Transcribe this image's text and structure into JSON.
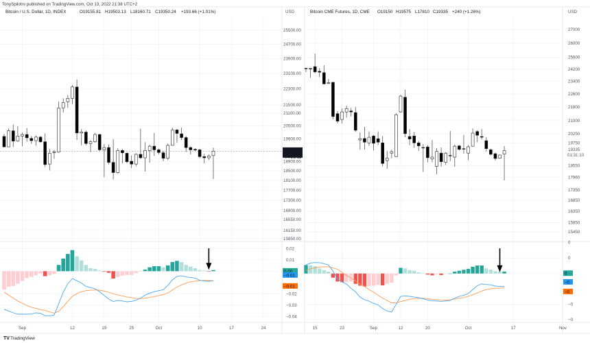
{
  "header": {
    "published": "TonySpilotro published on TradingView.com, Oct 13, 2022 21:38 UTC+2"
  },
  "footer": {
    "logo_text": "TradingView"
  },
  "colors": {
    "up_body": "#ffffff",
    "down_body": "#000000",
    "wick": "#555555",
    "hist_up_strong": "#26a69a",
    "hist_up_weak": "#b2dfdb",
    "hist_down_strong": "#ef5350",
    "hist_down_weak": "#ffcdd2",
    "macd_line": "#4aa8f0",
    "signal_line": "#ff9a52",
    "macd_badge": "#2196f3",
    "signal_badge": "#ff6d00",
    "hist_badge": "#26a69a",
    "grid": "#f0f3fa",
    "border": "#e0e3eb"
  },
  "chart_data": [
    {
      "type": "candlestick",
      "title": "Bitcoin / U.S. Dollar, 1D, INDEX",
      "legend": {
        "o": "O19155.81",
        "h": "H19503.13",
        "l": "L18160.71",
        "c": "C19350.24",
        "chg": "+193.66 (+1.01%)"
      },
      "currency": "USD",
      "y_scale": "log",
      "calendar": "daily",
      "y_ticks": [
        "25500.00",
        "24700.00",
        "23900.00",
        "23100.00",
        "22300.00",
        "21500.00",
        "21100.00",
        "20500.00",
        "19900.00",
        "18900.00",
        "18500.00",
        "18100.00",
        "17700.00",
        "17300.00",
        "16900.00",
        "16550.00",
        "16150.00",
        "15850.00"
      ],
      "last_price": "19350.24",
      "countdown": "04:21:11",
      "x_ticks": [
        [
          "Sep",
          "2022-09-01"
        ],
        [
          "12",
          "2022-09-12"
        ],
        [
          "19",
          "2022-09-19"
        ],
        [
          "25",
          "2022-09-25"
        ],
        [
          "Oct",
          "2022-10-01"
        ],
        [
          "10",
          "2022-10-10"
        ],
        [
          "17",
          "2022-10-17"
        ],
        [
          "24",
          "2022-10-24"
        ]
      ],
      "dates": [
        "2022-08-28",
        "2022-08-29",
        "2022-08-30",
        "2022-08-31",
        "2022-09-01",
        "2022-09-02",
        "2022-09-03",
        "2022-09-04",
        "2022-09-05",
        "2022-09-06",
        "2022-09-07",
        "2022-09-08",
        "2022-09-09",
        "2022-09-10",
        "2022-09-11",
        "2022-09-12",
        "2022-09-13",
        "2022-09-14",
        "2022-09-15",
        "2022-09-16",
        "2022-09-17",
        "2022-09-18",
        "2022-09-19",
        "2022-09-20",
        "2022-09-21",
        "2022-09-22",
        "2022-09-23",
        "2022-09-24",
        "2022-09-25",
        "2022-09-26",
        "2022-09-27",
        "2022-09-28",
        "2022-09-29",
        "2022-09-30",
        "2022-10-01",
        "2022-10-02",
        "2022-10-03",
        "2022-10-04",
        "2022-10-05",
        "2022-10-06",
        "2022-10-07",
        "2022-10-08",
        "2022-10-09",
        "2022-10-10",
        "2022-10-11",
        "2022-10-12",
        "2022-10-13"
      ],
      "candles": [
        [
          20010,
          20130,
          19540,
          19540
        ],
        [
          19540,
          20380,
          19540,
          20270
        ],
        [
          20270,
          20560,
          19540,
          19800
        ],
        [
          19800,
          20480,
          19770,
          20030
        ],
        [
          20030,
          20190,
          19570,
          20100
        ],
        [
          20100,
          20400,
          19770,
          19950
        ],
        [
          19920,
          20030,
          19670,
          19820
        ],
        [
          19820,
          20060,
          19590,
          19980
        ],
        [
          19980,
          20030,
          19720,
          19770
        ],
        [
          19770,
          20150,
          18670,
          18770
        ],
        [
          18790,
          19450,
          18520,
          19260
        ],
        [
          19280,
          19410,
          19010,
          19310
        ],
        [
          19310,
          21660,
          19280,
          21350
        ],
        [
          21360,
          21830,
          21130,
          21620
        ],
        [
          21660,
          22000,
          21360,
          21830
        ],
        [
          21830,
          22500,
          21550,
          22400
        ],
        [
          22400,
          22780,
          19850,
          20170
        ],
        [
          20170,
          20350,
          19610,
          20220
        ],
        [
          20210,
          20290,
          19610,
          19690
        ],
        [
          19690,
          19840,
          19310,
          19770
        ],
        [
          19770,
          20170,
          19720,
          20100
        ],
        [
          20100,
          20130,
          19360,
          19410
        ],
        [
          19410,
          19670,
          18240,
          19510
        ],
        [
          19510,
          19650,
          18770,
          18860
        ],
        [
          18860,
          19890,
          18140,
          18430
        ],
        [
          18430,
          19480,
          18380,
          19380
        ],
        [
          19380,
          19450,
          18820,
          19280
        ],
        [
          19260,
          19280,
          18820,
          18890
        ],
        [
          18910,
          19160,
          18620,
          18790
        ],
        [
          18790,
          19260,
          18690,
          19210
        ],
        [
          19210,
          20370,
          19010,
          19060
        ],
        [
          19060,
          19750,
          18470,
          19380
        ],
        [
          19380,
          19640,
          18850,
          19570
        ],
        [
          19570,
          20170,
          19140,
          19410
        ],
        [
          19410,
          19460,
          19210,
          19290
        ],
        [
          19280,
          19360,
          18910,
          19040
        ],
        [
          19040,
          19690,
          18960,
          19610
        ],
        [
          19610,
          20420,
          19590,
          20310
        ],
        [
          20310,
          20350,
          19720,
          20150
        ],
        [
          20130,
          20420,
          19850,
          19960
        ],
        [
          19960,
          20030,
          19310,
          19510
        ],
        [
          19510,
          19570,
          19210,
          19410
        ],
        [
          19430,
          19480,
          19360,
          19400
        ],
        [
          19410,
          19450,
          19040,
          19110
        ],
        [
          19110,
          19240,
          18820,
          19060
        ],
        [
          19060,
          19210,
          18960,
          19140
        ],
        [
          19155.81,
          19503.13,
          18160.71,
          19350.24
        ]
      ],
      "macd": {
        "y_ticks": [
          [
            "0.02",
            0.02
          ],
          [
            "0.01",
            0.01
          ],
          [
            "−0.02",
            -0.02
          ],
          [
            "−0.03",
            -0.03
          ],
          [
            "−0.04",
            -0.04
          ]
        ],
        "badges": {
          "histogram": "0.00",
          "macd": "−0.01",
          "signal": "−0.01"
        },
        "histogram": [
          -0.0162,
          -0.0137,
          -0.0131,
          -0.0111,
          -0.0085,
          -0.0061,
          -0.0051,
          -0.0036,
          -0.002,
          -0.0044,
          -0.0036,
          -0.0024,
          0.0055,
          0.0111,
          0.0152,
          0.0186,
          0.0131,
          0.0095,
          0.0055,
          0.0026,
          0.002,
          0.0006,
          -0.0004,
          -0.0014,
          -0.0065,
          -0.0051,
          -0.004,
          -0.0034,
          -0.0034,
          -0.0016,
          -0.0004,
          0.0014,
          0.0034,
          0.0044,
          0.0044,
          0.0034,
          0.0051,
          0.0081,
          0.0091,
          0.0081,
          0.0055,
          0.004,
          0.0026,
          0.001,
          0.0006,
          -0.0002,
          0.001
        ],
        "macd": [
          -0.0337,
          -0.0352,
          -0.0368,
          -0.038,
          -0.038,
          -0.038,
          -0.0378,
          -0.0368,
          -0.0372,
          -0.0394,
          -0.0394,
          -0.0388,
          -0.0287,
          -0.0186,
          -0.0111,
          -0.0065,
          -0.0085,
          -0.0105,
          -0.0135,
          -0.0145,
          -0.0156,
          -0.0182,
          -0.0214,
          -0.0246,
          -0.0267,
          -0.0259,
          -0.0263,
          -0.0271,
          -0.0267,
          -0.0255,
          -0.0238,
          -0.0212,
          -0.0194,
          -0.0182,
          -0.0172,
          -0.0164,
          -0.0125,
          -0.0077,
          -0.0046,
          -0.004,
          -0.0051,
          -0.0055,
          -0.0061,
          -0.0081,
          -0.0087,
          -0.0089,
          -0.0085
        ],
        "signal": [
          -0.0185,
          -0.0212,
          -0.0238,
          -0.0263,
          -0.0283,
          -0.0303,
          -0.0319,
          -0.0329,
          -0.0339,
          -0.0347,
          -0.036,
          -0.037,
          -0.0354,
          -0.0313,
          -0.0267,
          -0.0222,
          -0.0198,
          -0.0182,
          -0.0172,
          -0.0168,
          -0.0166,
          -0.0168,
          -0.0176,
          -0.0186,
          -0.0198,
          -0.021,
          -0.0218,
          -0.0228,
          -0.0234,
          -0.024,
          -0.0242,
          -0.0238,
          -0.0232,
          -0.0224,
          -0.0216,
          -0.0206,
          -0.0192,
          -0.0166,
          -0.0141,
          -0.0121,
          -0.0105,
          -0.0095,
          -0.0087,
          -0.0083,
          -0.0081,
          -0.0083,
          -0.0085
        ]
      },
      "annotation": {
        "type": "down-arrow",
        "date": "2022-10-12"
      }
    },
    {
      "type": "candlestick",
      "title": "Bitcoin CME Futures, 1D, CME",
      "legend": {
        "o": "O19150",
        "h": "H19575",
        "l": "L17810",
        "c": "C19335",
        "chg": "+240 (+1.26%)"
      },
      "currency": "USD",
      "y_scale": "log",
      "calendar": "weekdays",
      "y_ticks": [
        "27000",
        "26000",
        "25000",
        "24200",
        "23400",
        "22600",
        "21800",
        "21000",
        "20250",
        "19750",
        "18550",
        "17960",
        "17350",
        "16850",
        "16350",
        "15850",
        "15450"
      ],
      "last_price": "19335",
      "countdown": "01:31:10",
      "x_ticks": [
        [
          "15",
          "2022-08-15"
        ],
        [
          "23",
          "2022-08-23"
        ],
        [
          "Sep",
          "2022-09-01"
        ],
        [
          "12",
          "2022-09-12"
        ],
        [
          "20",
          "2022-09-20"
        ],
        [
          "Oct",
          "2022-10-03"
        ],
        [
          "17",
          "2022-10-17"
        ],
        [
          "Nov",
          "2022-11-01"
        ]
      ],
      "dates": [
        "2022-08-11",
        "2022-08-12",
        "2022-08-15",
        "2022-08-16",
        "2022-08-17",
        "2022-08-18",
        "2022-08-19",
        "2022-08-22",
        "2022-08-23",
        "2022-08-24",
        "2022-08-25",
        "2022-08-26",
        "2022-08-29",
        "2022-08-30",
        "2022-08-31",
        "2022-09-01",
        "2022-09-02",
        "2022-09-06",
        "2022-09-07",
        "2022-09-08",
        "2022-09-09",
        "2022-09-12",
        "2022-09-13",
        "2022-09-14",
        "2022-09-15",
        "2022-09-16",
        "2022-09-19",
        "2022-09-20",
        "2022-09-21",
        "2022-09-22",
        "2022-09-23",
        "2022-09-26",
        "2022-09-27",
        "2022-09-28",
        "2022-09-29",
        "2022-09-30",
        "2022-10-03",
        "2022-10-04",
        "2022-10-05",
        "2022-10-06",
        "2022-10-07",
        "2022-10-10",
        "2022-10-11",
        "2022-10-12",
        "2022-10-13"
      ],
      "candles": [
        [
          24260,
          24290,
          24010,
          24250
        ],
        [
          24250,
          24270,
          23640,
          24240
        ],
        [
          24370,
          25260,
          23940,
          24020
        ],
        [
          24060,
          24270,
          23670,
          24000
        ],
        [
          23970,
          24470,
          23200,
          23240
        ],
        [
          23265,
          23565,
          23220,
          23310
        ],
        [
          23340,
          23340,
          21080,
          21240
        ],
        [
          21410,
          21570,
          20840,
          20970
        ],
        [
          21070,
          21710,
          20840,
          21510
        ],
        [
          21510,
          21890,
          21170,
          21710
        ],
        [
          21570,
          21750,
          21240,
          21510
        ],
        [
          21470,
          21810,
          20350,
          20450
        ],
        [
          19910,
          20320,
          19380,
          19980
        ],
        [
          19990,
          20640,
          19380,
          19790
        ],
        [
          19750,
          20380,
          19590,
          20060
        ],
        [
          20130,
          20190,
          19340,
          19730
        ],
        [
          19980,
          20380,
          19630,
          19790
        ],
        [
          19750,
          20130,
          18510,
          18660
        ],
        [
          18810,
          19320,
          18390,
          18930
        ],
        [
          19200,
          19380,
          18930,
          19280
        ],
        [
          19020,
          21440,
          19000,
          21340
        ],
        [
          21510,
          22550,
          21480,
          22470
        ],
        [
          22400,
          22870,
          20060,
          20260
        ],
        [
          20100,
          20510,
          19630,
          19960
        ],
        [
          20130,
          20350,
          19480,
          19750
        ],
        [
          19750,
          19850,
          19320,
          19590
        ],
        [
          19500,
          19690,
          18230,
          19480
        ],
        [
          19530,
          19630,
          18720,
          18960
        ],
        [
          18890,
          19900,
          18720,
          18990
        ],
        [
          18510,
          19470,
          18120,
          19290
        ],
        [
          19200,
          19500,
          18490,
          18750
        ],
        [
          18720,
          19260,
          18580,
          19200
        ],
        [
          19080,
          20410,
          18780,
          19060
        ],
        [
          18990,
          19660,
          18490,
          19570
        ],
        [
          19590,
          19630,
          19340,
          19400
        ],
        [
          19440,
          20190,
          19170,
          19420
        ],
        [
          19200,
          19630,
          18840,
          19540
        ],
        [
          19570,
          20550,
          19540,
          20290
        ],
        [
          20380,
          20450,
          19790,
          20170
        ],
        [
          20100,
          20510,
          19940,
          20060
        ],
        [
          19870,
          20060,
          19280,
          19440
        ],
        [
          19380,
          19440,
          19080,
          19140
        ],
        [
          19170,
          19220,
          18810,
          18920
        ],
        [
          18930,
          19120,
          18910,
          19100
        ],
        [
          19150,
          19575,
          17810,
          19335
        ]
      ],
      "macd": {
        "y_ticks": [
          [
            "0",
            2
          ],
          [
            "0",
            1
          ],
          [
            "−0",
            -2
          ],
          [
            "−0",
            -3
          ]
        ],
        "badges": {
          "histogram": "0",
          "macd": "−0",
          "signal": "−0"
        },
        "histogram": [
          0.55,
          0.52,
          0.47,
          0.33,
          0.22,
          0.12,
          -0.27,
          -0.52,
          -0.56,
          -0.56,
          -0.52,
          -0.67,
          -0.79,
          -0.84,
          -0.81,
          -0.79,
          -0.74,
          -0.77,
          -0.67,
          -0.59,
          -0.12,
          0.37,
          0.33,
          0.22,
          0.18,
          0.07,
          0.03,
          -0.07,
          -0.12,
          -0.04,
          -0.1,
          -0.01,
          0.0,
          0.12,
          0.18,
          0.24,
          0.3,
          0.44,
          0.52,
          0.52,
          0.33,
          0.25,
          0.15,
          0.12,
          0.13
        ],
        "macd": [
          0.56,
          0.67,
          0.71,
          0.7,
          0.64,
          0.55,
          0.15,
          -0.34,
          -0.55,
          -0.68,
          -0.96,
          -1.19,
          -1.53,
          -1.7,
          -1.79,
          -1.93,
          -2.04,
          -2.27,
          -2.43,
          -2.49,
          -2.0,
          -1.48,
          -1.45,
          -1.48,
          -1.53,
          -1.57,
          -1.63,
          -1.72,
          -1.76,
          -1.78,
          -1.81,
          -1.78,
          -1.75,
          -1.6,
          -1.48,
          -1.41,
          -1.3,
          -1.04,
          -0.79,
          -0.67,
          -0.71,
          -0.74,
          -0.81,
          -0.84,
          -0.83
        ],
        "signal": [
          0.19,
          0.3,
          0.37,
          0.41,
          0.44,
          0.43,
          0.36,
          0.27,
          0.07,
          -0.12,
          -0.3,
          -0.49,
          -0.68,
          -0.84,
          -1.04,
          -1.21,
          -1.41,
          -1.59,
          -1.75,
          -1.9,
          -1.9,
          -1.82,
          -1.75,
          -1.67,
          -1.63,
          -1.61,
          -1.6,
          -1.63,
          -1.67,
          -1.7,
          -1.72,
          -1.73,
          -1.7,
          -1.66,
          -1.6,
          -1.56,
          -1.48,
          -1.38,
          -1.26,
          -1.14,
          -1.04,
          -0.99,
          -0.96,
          -0.95,
          -0.92
        ]
      },
      "annotation": {
        "type": "down-arrow",
        "date": "2022-10-12"
      }
    }
  ]
}
